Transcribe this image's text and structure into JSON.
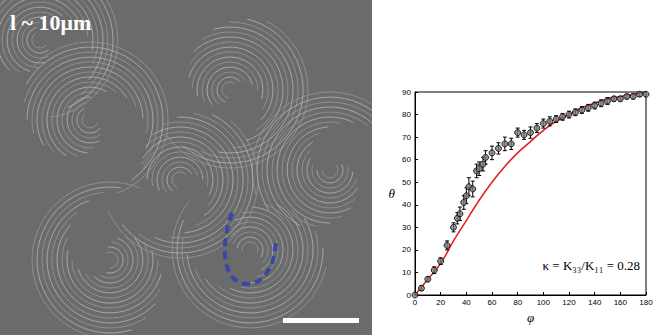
{
  "image": {
    "label": "l ~ 10μm"
  },
  "chart_data": {
    "type": "scatter",
    "x_label": "φ",
    "y_label": "θ",
    "annotation": "κ = K₃₃/K₁₁ = 0.28",
    "xlim": [
      0,
      180
    ],
    "xticks": [
      0,
      20,
      40,
      60,
      80,
      100,
      120,
      140,
      160,
      180
    ],
    "ylim": [
      0,
      90
    ],
    "yticks": [
      0,
      10,
      20,
      30,
      40,
      50,
      60,
      70,
      80,
      90
    ],
    "grid": false,
    "series": [
      {
        "type": "scatter",
        "color": "#000000",
        "marker": "circle",
        "x": [
          0,
          5,
          10,
          15,
          20,
          25,
          30,
          33,
          35,
          38,
          40,
          42,
          45,
          48,
          50,
          53,
          55,
          60,
          65,
          70,
          75,
          80,
          85,
          90,
          95,
          100,
          105,
          110,
          115,
          120,
          125,
          130,
          135,
          140,
          145,
          150,
          155,
          160,
          165,
          170,
          175,
          180
        ],
        "values": [
          0,
          3,
          7,
          11,
          15,
          22,
          30,
          34,
          36,
          41,
          44,
          48,
          47,
          55,
          56,
          58,
          61,
          63,
          65,
          67,
          67,
          72,
          71,
          72,
          74,
          76,
          77,
          78,
          79,
          80,
          81,
          82,
          83,
          84,
          85,
          86,
          87,
          87,
          88,
          88,
          89,
          89
        ],
        "errors": [
          0.5,
          1,
          1,
          1.5,
          1.5,
          2,
          2,
          2.5,
          3,
          3,
          3.5,
          4,
          3.5,
          3,
          3,
          3,
          3,
          3,
          2.5,
          3,
          2.5,
          2,
          2,
          2.5,
          2,
          2,
          2,
          1.5,
          1.5,
          1.5,
          1.5,
          1.5,
          1.5,
          1.5,
          1.5,
          1.5,
          1,
          1,
          1,
          1,
          1,
          1
        ]
      },
      {
        "type": "line",
        "color": "#e31a1c",
        "x": [
          0,
          10,
          20,
          30,
          40,
          50,
          60,
          70,
          80,
          90,
          100,
          110,
          120,
          130,
          140,
          150,
          160,
          170,
          180
        ],
        "values": [
          0,
          7,
          14,
          24,
          33,
          42,
          50,
          57,
          63,
          68,
          73,
          77,
          80,
          83,
          85,
          87,
          88,
          89,
          90
        ]
      }
    ]
  }
}
